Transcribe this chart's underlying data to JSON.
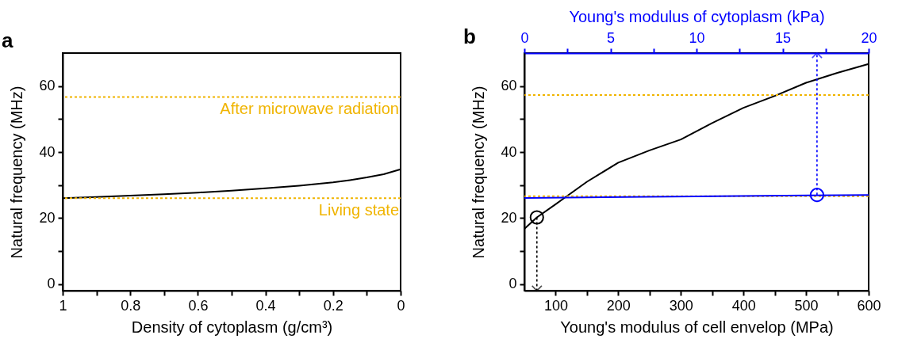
{
  "chart_data": [
    {
      "type": "line",
      "title": "a",
      "xlabel": "Density of cytoplasm (g/cm³)",
      "ylabel": "Natural frequency (MHz)",
      "x": [
        1,
        0.9,
        0.8,
        0.7,
        0.6,
        0.5,
        0.4,
        0.3,
        0.2,
        0.15,
        0.1,
        0.05,
        0
      ],
      "series": [
        {
          "color": "#000000",
          "values": [
            26.0,
            26.4,
            26.8,
            27.2,
            27.7,
            28.3,
            29.0,
            29.8,
            30.8,
            31.5,
            32.3,
            33.3,
            34.8
          ]
        }
      ],
      "xlim": [
        1,
        0
      ],
      "xticks": [
        1,
        {
          "value": 0.9,
          "label": null
        },
        0.8,
        {
          "value": 0.7,
          "label": null
        },
        0.6,
        {
          "value": 0.5,
          "label": null
        },
        0.4,
        {
          "value": 0.3,
          "label": null
        },
        0.2,
        {
          "value": 0.1,
          "label": null
        },
        0
      ],
      "ylim": [
        -2,
        70
      ],
      "yticks": [
        0,
        {
          "value": 10,
          "label": null
        },
        20,
        {
          "value": 30,
          "label": null
        },
        40,
        {
          "value": 50,
          "label": null
        },
        60
      ],
      "ref_lines": [
        {
          "axis": "y",
          "value": 56.7,
          "label": "After microwave radiation",
          "color": "#f0b400",
          "line_style": "dotted"
        },
        {
          "axis": "y",
          "value": 26.0,
          "label": "Living state",
          "color": "#f0b400",
          "line_style": "dotted"
        }
      ],
      "grid": false
    },
    {
      "type": "line",
      "title": "b",
      "xlabel": "Young's modulus of cell envelop (MPa)",
      "ylabel": "Natural frequency (MHz)",
      "x2label": "Young's modulus of cytoplasm (kPa)",
      "x": [
        50,
        70,
        100,
        150,
        200,
        250,
        300,
        350,
        400,
        450,
        500,
        550,
        600
      ],
      "series": [
        {
          "color": "#000000",
          "values": [
            16.7,
            20.2,
            24.2,
            31.0,
            36.8,
            40.5,
            43.8,
            48.8,
            53.4,
            57.0,
            61.0,
            64.0,
            66.7
          ]
        },
        {
          "color": "#0000ff",
          "axis": "x2",
          "x": [
            0,
            20
          ],
          "values": [
            26.1,
            27.0
          ]
        },
        {
          "type": "scatter",
          "color": "#000000",
          "x": [
            70
          ],
          "values": [
            20.2
          ],
          "marker": "circle"
        },
        {
          "type": "scatter",
          "color": "#0000ff",
          "axis": "x2",
          "x": [
            17
          ],
          "values": [
            27.0
          ],
          "marker": "circle"
        }
      ],
      "xlim": [
        50,
        600
      ],
      "xticks": [
        100,
        {
          "value": 150,
          "label": null
        },
        200,
        {
          "value": 250,
          "label": null
        },
        300,
        {
          "value": 350,
          "label": null
        },
        400,
        {
          "value": 450,
          "label": null
        },
        500,
        {
          "value": 550,
          "label": null
        },
        600
      ],
      "x2lim": [
        0,
        20
      ],
      "x2ticks": [
        0,
        {
          "value": 2.5,
          "label": null
        },
        5,
        {
          "value": 7.5,
          "label": null
        },
        10,
        {
          "value": 12.5,
          "label": null
        },
        15,
        {
          "value": 17.5,
          "label": null
        },
        20
      ],
      "ylim": [
        -2,
        70
      ],
      "yticks": [
        0,
        {
          "value": 10,
          "label": null
        },
        20,
        {
          "value": 30,
          "label": null
        },
        40,
        {
          "value": 50,
          "label": null
        },
        60
      ],
      "ref_lines": [
        {
          "axis": "y",
          "value": 57.3,
          "color": "#f0b400",
          "line_style": "dotted"
        },
        {
          "axis": "y",
          "value": 26.6,
          "color": "#f0b400",
          "line_style": "dotted"
        }
      ],
      "grid": false
    }
  ]
}
